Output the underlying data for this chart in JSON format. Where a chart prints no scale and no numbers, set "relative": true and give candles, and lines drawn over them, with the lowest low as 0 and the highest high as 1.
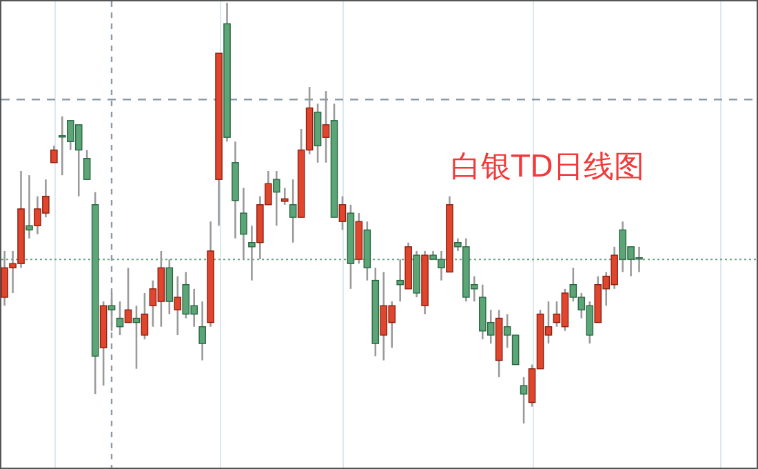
{
  "chart_data": {
    "type": "candlestick",
    "title": "白银TD日线图",
    "relative": true,
    "grid": "x",
    "categories": [
      null,
      null,
      null,
      null,
      null,
      null,
      null,
      null,
      null,
      null,
      null,
      null,
      null,
      null,
      null,
      null,
      null,
      null,
      null,
      null,
      null,
      null,
      null,
      null,
      null,
      null,
      null,
      null,
      null,
      null,
      null,
      null,
      null,
      null,
      null,
      null,
      null,
      null,
      null,
      null,
      null,
      null,
      null,
      null,
      null,
      null,
      null,
      null,
      null,
      null,
      null,
      null,
      null,
      null,
      null,
      null,
      null,
      null,
      null,
      null,
      null,
      null,
      null,
      null,
      null,
      null,
      null,
      null,
      null,
      null,
      null,
      null,
      null,
      null,
      null,
      null,
      null,
      null
    ],
    "ohlc": [
      [
        0.3,
        0.41,
        0.28,
        0.37
      ],
      [
        0.37,
        0.41,
        0.31,
        0.38
      ],
      [
        0.38,
        0.6,
        0.37,
        0.51
      ],
      [
        0.47,
        0.59,
        0.44,
        0.46
      ],
      [
        0.47,
        0.54,
        0.45,
        0.51
      ],
      [
        0.5,
        0.58,
        0.49,
        0.54
      ],
      [
        0.62,
        0.66,
        0.62,
        0.65
      ],
      [
        0.684,
        0.73,
        0.59,
        0.681
      ],
      [
        0.72,
        0.72,
        0.65,
        0.67
      ],
      [
        0.71,
        0.71,
        0.54,
        0.65
      ],
      [
        0.63,
        0.65,
        0.58,
        0.58
      ],
      [
        0.52,
        0.55,
        0.07,
        0.16
      ],
      [
        0.18,
        0.29,
        0.09,
        0.28
      ],
      [
        0.28,
        0.31,
        0.22,
        0.27
      ],
      [
        0.25,
        0.29,
        0.21,
        0.23
      ],
      [
        0.24,
        0.37,
        0.24,
        0.27
      ],
      [
        0.25,
        0.28,
        0.13,
        0.24
      ],
      [
        0.21,
        0.31,
        0.2,
        0.26
      ],
      [
        0.28,
        0.34,
        0.23,
        0.32
      ],
      [
        0.29,
        0.41,
        0.23,
        0.37
      ],
      [
        0.37,
        0.39,
        0.26,
        0.29
      ],
      [
        0.27,
        0.35,
        0.21,
        0.3
      ],
      [
        0.33,
        0.36,
        0.25,
        0.26
      ],
      [
        0.28,
        0.32,
        0.23,
        0.26
      ],
      [
        0.23,
        0.29,
        0.15,
        0.19
      ],
      [
        0.24,
        0.48,
        0.23,
        0.41
      ],
      [
        0.58,
        0.88,
        0.47,
        0.88
      ],
      [
        0.95,
        1,
        0.67,
        0.68
      ],
      [
        0.62,
        0.67,
        0.44,
        0.53
      ],
      [
        0.5,
        0.56,
        0.39,
        0.45
      ],
      [
        0.43,
        0.47,
        0.34,
        0.42
      ],
      [
        0.43,
        0.54,
        0.39,
        0.52
      ],
      [
        0.52,
        0.6,
        0.52,
        0.57
      ],
      [
        0.58,
        0.6,
        0.47,
        0.55
      ],
      [
        0.528,
        0.56,
        0.52,
        0.534
      ],
      [
        0.52,
        0.58,
        0.43,
        0.49
      ],
      [
        0.49,
        0.7,
        0.49,
        0.65
      ],
      [
        0.65,
        0.8,
        0.64,
        0.75
      ],
      [
        0.74,
        0.76,
        0.62,
        0.66
      ],
      [
        0.68,
        0.79,
        0.62,
        0.71
      ],
      [
        0.72,
        0.76,
        0.49,
        0.49
      ],
      [
        0.48,
        0.54,
        0.46,
        0.52
      ],
      [
        0.5,
        0.52,
        0.32,
        0.38
      ],
      [
        0.39,
        0.5,
        0.38,
        0.48
      ],
      [
        0.46,
        0.48,
        0.34,
        0.37
      ],
      [
        0.34,
        0.37,
        0.16,
        0.19
      ],
      [
        0.21,
        0.36,
        0.15,
        0.28
      ],
      [
        0.24,
        0.29,
        0.18,
        0.28
      ],
      [
        0.34,
        0.39,
        0.29,
        0.33
      ],
      [
        0.32,
        0.43,
        0.32,
        0.42
      ],
      [
        0.4,
        0.41,
        0.3,
        0.31
      ],
      [
        0.28,
        0.41,
        0.26,
        0.4
      ],
      [
        0.4,
        0.41,
        0.39,
        0.39
      ],
      [
        0.39,
        0.41,
        0.34,
        0.37
      ],
      [
        0.36,
        0.54,
        0.36,
        0.52
      ],
      [
        0.43,
        0.44,
        0.41,
        0.42
      ],
      [
        0.42,
        0.44,
        0.29,
        0.3
      ],
      [
        0.33,
        0.35,
        0.29,
        0.32
      ],
      [
        0.3,
        0.33,
        0.2,
        0.22
      ],
      [
        0.24,
        0.27,
        0.19,
        0.21
      ],
      [
        0.15,
        0.27,
        0.11,
        0.25
      ],
      [
        0.23,
        0.26,
        0.18,
        0.21
      ],
      [
        0.21,
        0.21,
        0.14,
        0.14
      ],
      [
        0.09,
        0.11,
        0,
        0.07
      ],
      [
        0.05,
        0.14,
        0.04,
        0.13
      ],
      [
        0.13,
        0.27,
        0.13,
        0.26
      ],
      [
        0.21,
        0.29,
        0.19,
        0.23
      ],
      [
        0.24,
        0.29,
        0.23,
        0.26
      ],
      [
        0.23,
        0.32,
        0.22,
        0.31
      ],
      [
        0.33,
        0.37,
        0.29,
        0.3
      ],
      [
        0.3,
        0.31,
        0.25,
        0.27
      ],
      [
        0.28,
        0.29,
        0.19,
        0.21
      ],
      [
        0.24,
        0.35,
        0.24,
        0.33
      ],
      [
        0.32,
        0.36,
        0.28,
        0.35
      ],
      [
        0.33,
        0.42,
        0.32,
        0.4
      ],
      [
        0.46,
        0.48,
        0.36,
        0.39
      ],
      [
        0.42,
        0.42,
        0.35,
        0.39
      ],
      [
        0.394,
        0.42,
        0.36,
        0.391
      ]
    ],
    "ref_lines": [
      {
        "axis": "y",
        "value": 0.77,
        "color": "#8c9aa8",
        "line_style": "dashed"
      },
      {
        "axis": "y",
        "value": 0.39,
        "color": "#6aaa80",
        "line_style": "dotted"
      }
    ]
  }
}
